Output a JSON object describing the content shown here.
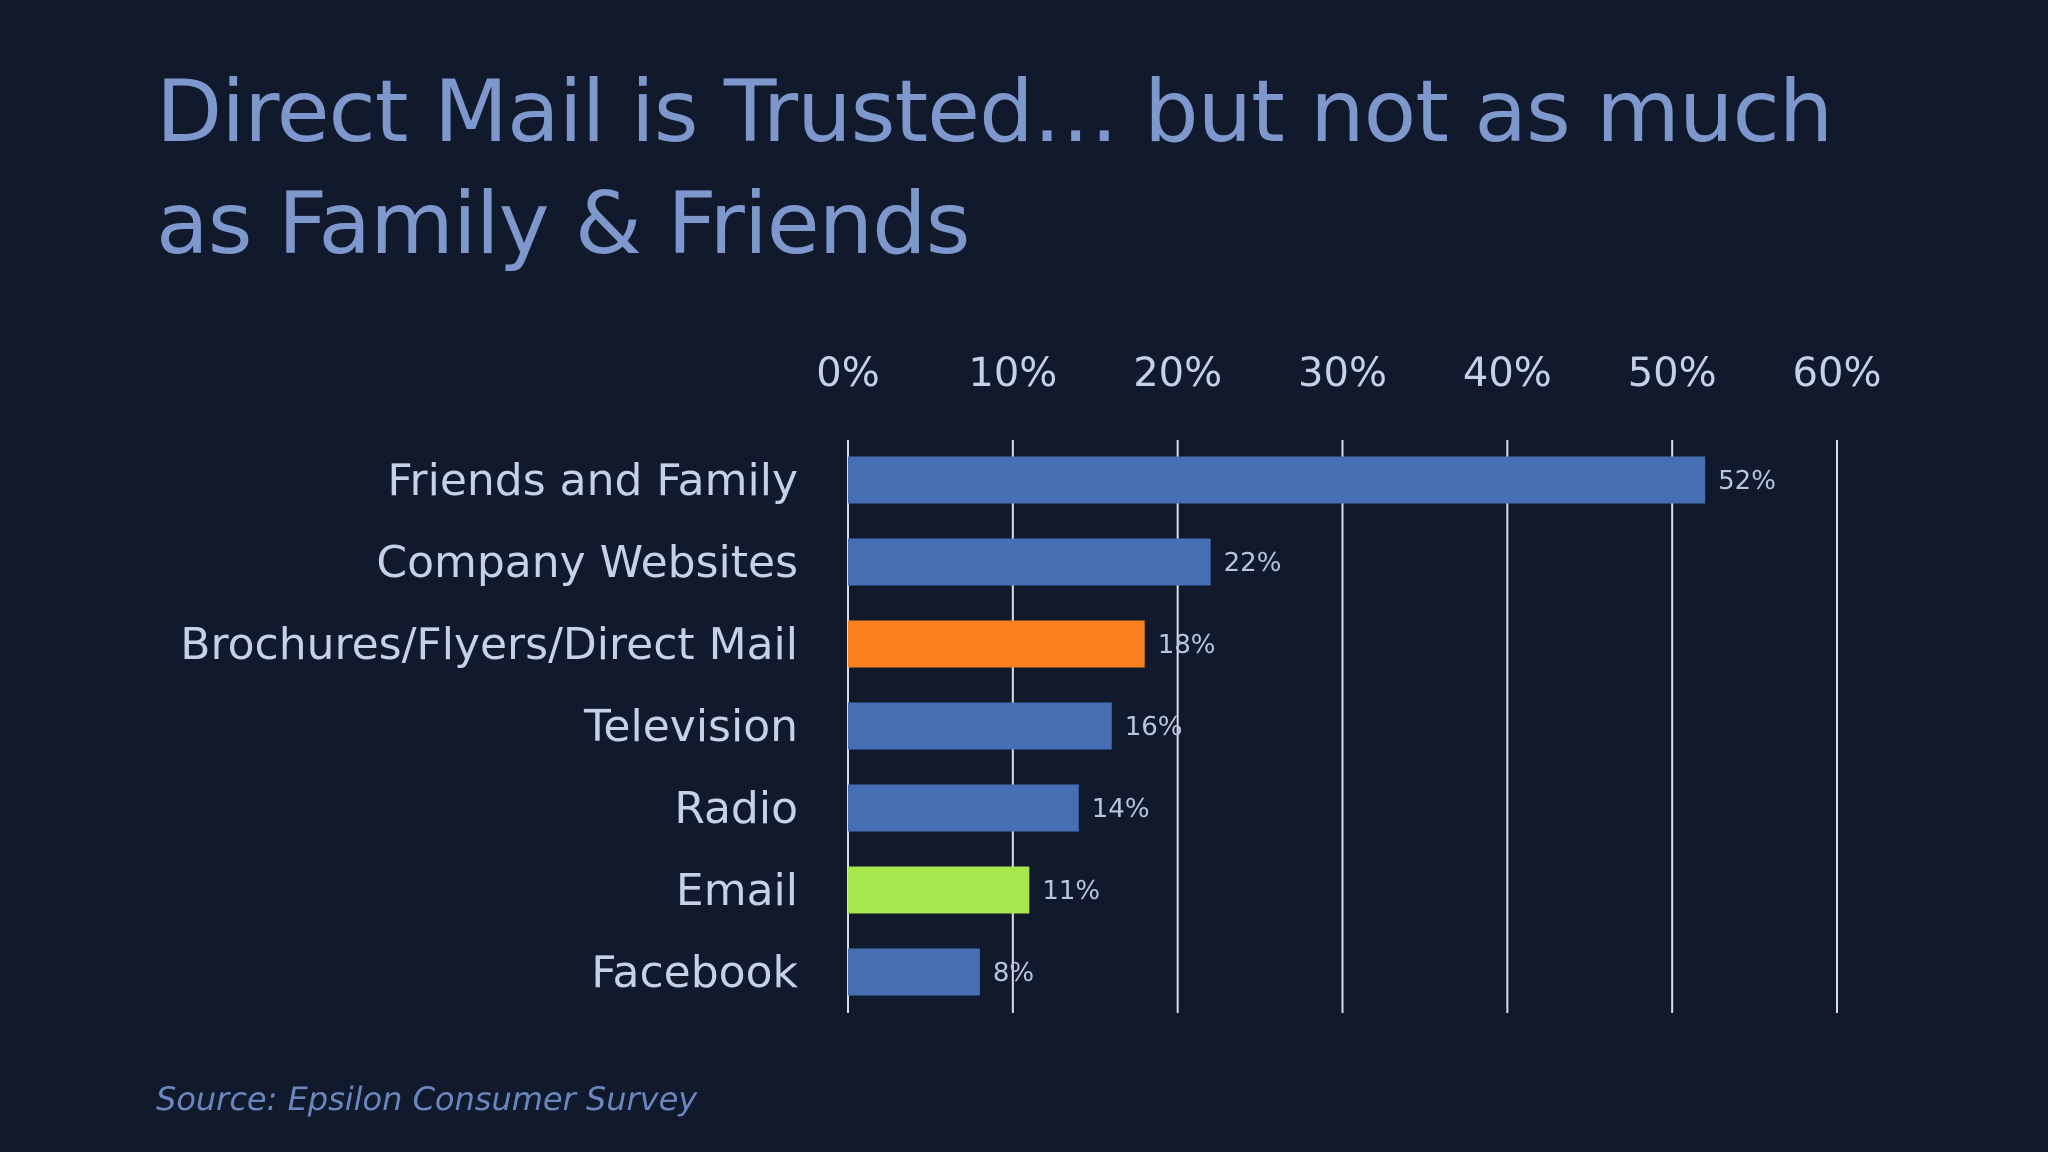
{
  "slide": {
    "title_line1": "Direct Mail is Trusted… but not as much",
    "title_line2": "as Family & Friends",
    "source": "Source: Epsilon Consumer Survey"
  },
  "colors": {
    "background": "#111a2c",
    "title": "#7e97cc",
    "bar_default": "#466fb3",
    "bar_direct_mail": "#fa7f1e",
    "bar_email": "#a7e64d",
    "gridline": "#d9dde6"
  },
  "chart_data": {
    "type": "bar",
    "orientation": "horizontal",
    "categories": [
      "Friends and Family",
      "Company Websites",
      "Brochures/Flyers/Direct Mail",
      "Television",
      "Radio",
      "Email",
      "Facebook"
    ],
    "values": [
      52,
      22,
      18,
      16,
      14,
      11,
      8
    ],
    "data_labels": [
      "52%",
      "22%",
      "18%",
      "16%",
      "14%",
      "11%",
      "8%"
    ],
    "bar_colors": [
      "#466fb3",
      "#466fb3",
      "#fa7f1e",
      "#466fb3",
      "#466fb3",
      "#a7e64d",
      "#466fb3"
    ],
    "x_ticks": [
      0,
      10,
      20,
      30,
      40,
      50,
      60
    ],
    "x_tick_labels": [
      "0%",
      "10%",
      "20%",
      "30%",
      "40%",
      "50%",
      "60%"
    ],
    "xlim": [
      0,
      60
    ],
    "x_axis_position": "top",
    "grid": true,
    "legend": false
  }
}
